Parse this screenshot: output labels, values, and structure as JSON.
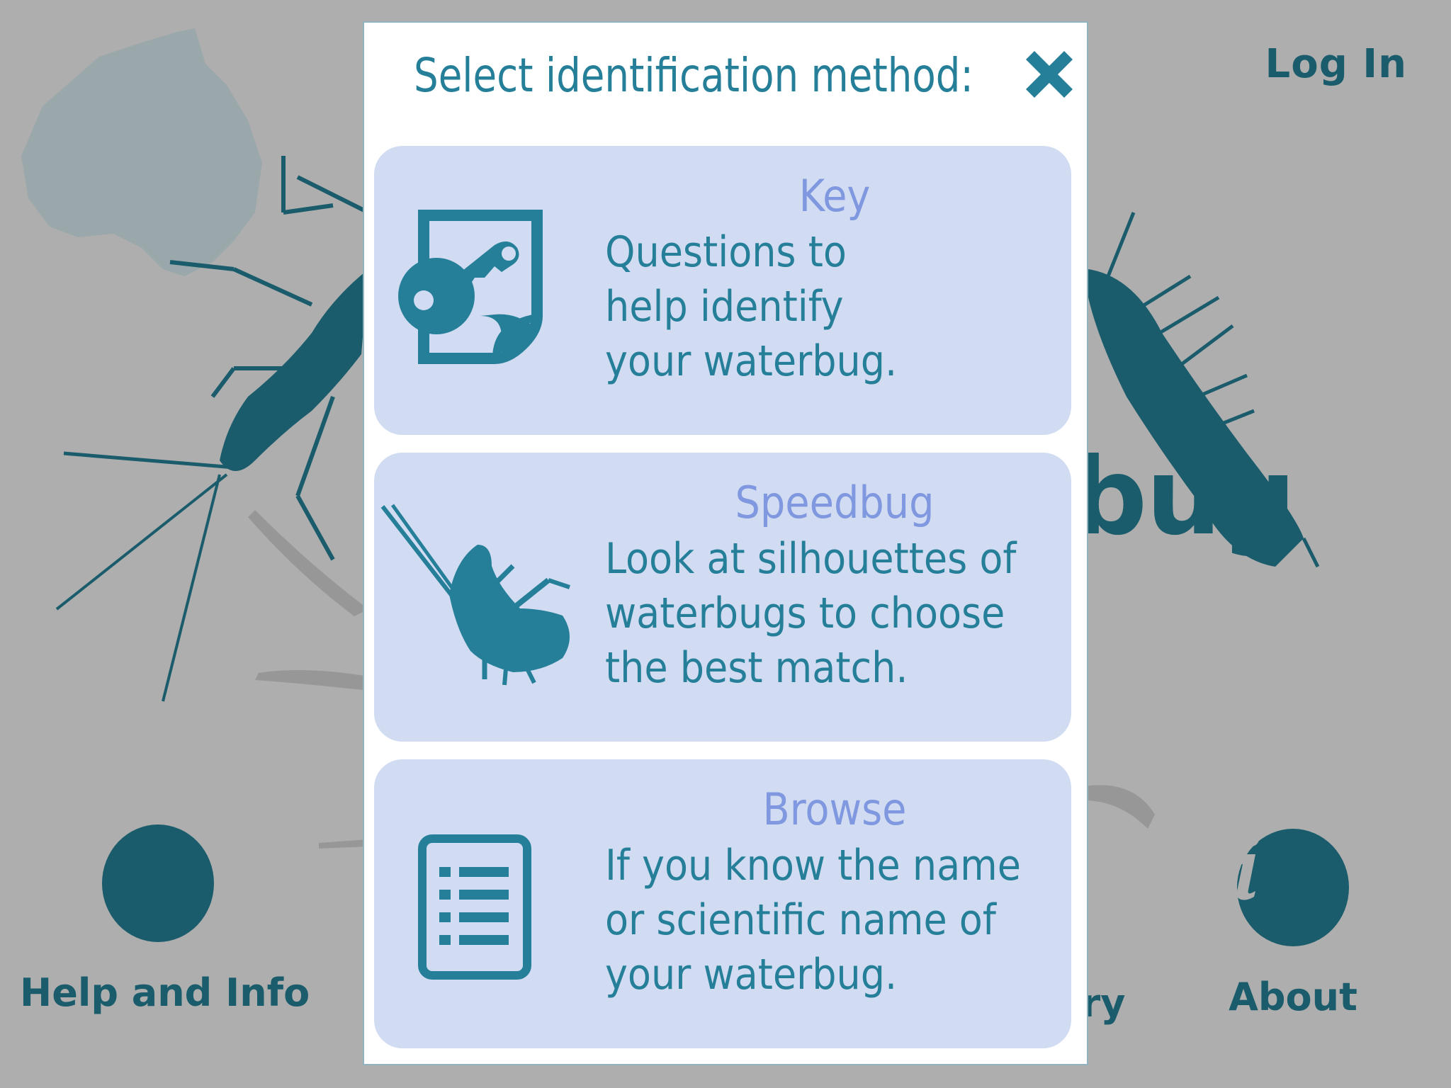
{
  "background": {
    "login_label": "Log In",
    "brand_partial": "bug",
    "nav": {
      "help_label": "Help and Info",
      "gallery_partial": "ery",
      "about_label": "About"
    }
  },
  "modal": {
    "title": "Select identification method:",
    "close_icon": "close-x-icon",
    "options": [
      {
        "title": "Key",
        "description": "Questions to help identify your waterbug.",
        "icon": "key-document-icon"
      },
      {
        "title": "Speedbug",
        "description": "Look at silhouettes of waterbugs to choose the best match.",
        "icon": "bug-silhouette-icon"
      },
      {
        "title": "Browse",
        "description": "If you know the name or scientific name of your waterbug.",
        "icon": "list-document-icon"
      }
    ]
  },
  "colors": {
    "overlay": "#aeaeae",
    "accent": "#267f99",
    "dark_teal": "#1a5c6b",
    "card_bg": "#d1dcf2",
    "card_title": "#7f98df"
  }
}
